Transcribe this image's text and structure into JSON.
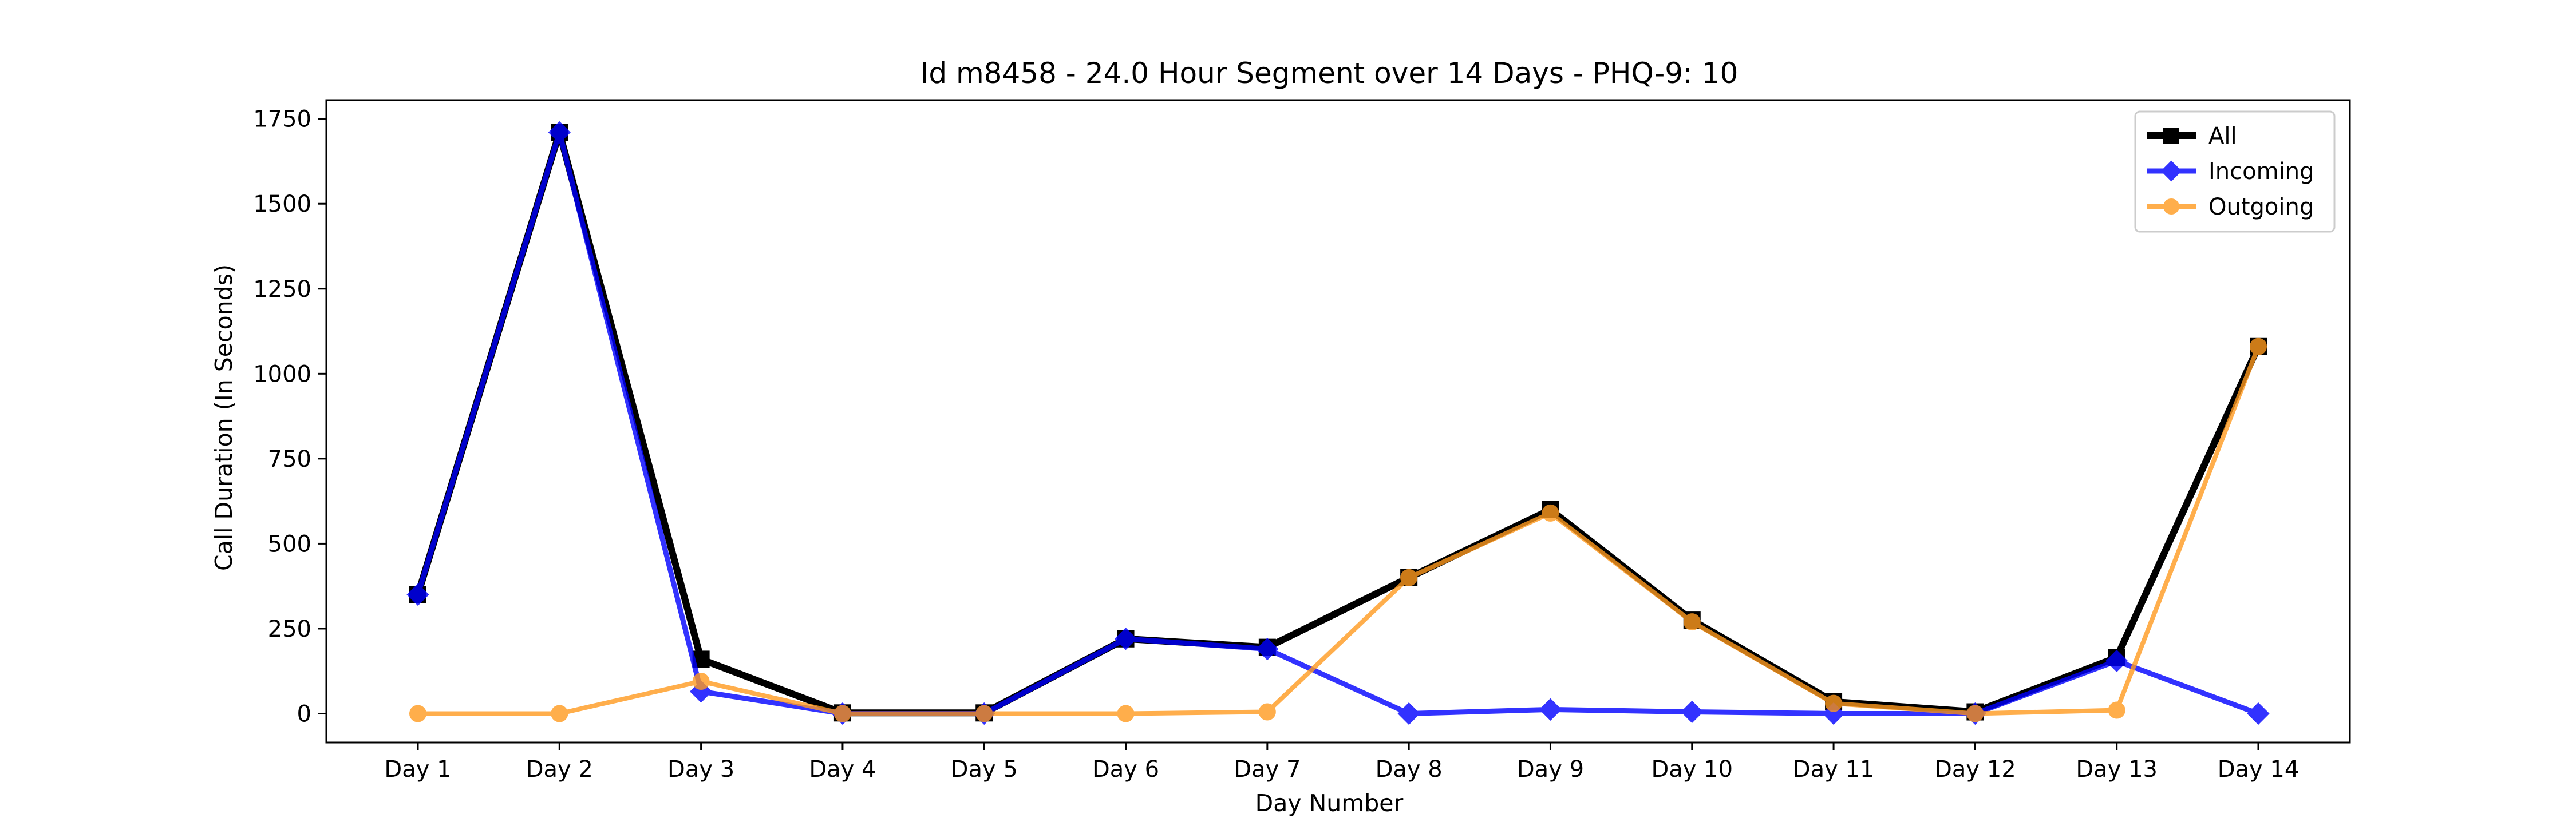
{
  "chart_data": {
    "type": "line",
    "title": "Id m8458 - 24.0 Hour Segment over 14 Days - PHQ-9: 10",
    "xlabel": "Day Number",
    "ylabel": "Call Duration (In Seconds)",
    "categories": [
      "Day 1",
      "Day 2",
      "Day 3",
      "Day 4",
      "Day 5",
      "Day 6",
      "Day 7",
      "Day 8",
      "Day 9",
      "Day 10",
      "Day 11",
      "Day 12",
      "Day 13",
      "Day 14"
    ],
    "ylim": [
      -85,
      1805
    ],
    "yticks": [
      0,
      250,
      500,
      750,
      1000,
      1250,
      1500,
      1750
    ],
    "grid": false,
    "legend_position": "top-right",
    "series": [
      {
        "name": "All",
        "color": "#000000",
        "marker": "square",
        "values": [
          350,
          1710,
          160,
          2,
          2,
          220,
          195,
          400,
          600,
          275,
          35,
          5,
          165,
          1080
        ]
      },
      {
        "name": "Incoming",
        "color": "#0000ff",
        "marker": "diamond",
        "values": [
          350,
          1710,
          65,
          0,
          0,
          220,
          190,
          0,
          12,
          5,
          0,
          0,
          155,
          0
        ]
      },
      {
        "name": "Outgoing",
        "color": "#ff9a1f",
        "marker": "circle",
        "values": [
          0,
          0,
          95,
          0,
          0,
          0,
          5,
          400,
          590,
          270,
          30,
          0,
          10,
          1080
        ]
      }
    ]
  }
}
